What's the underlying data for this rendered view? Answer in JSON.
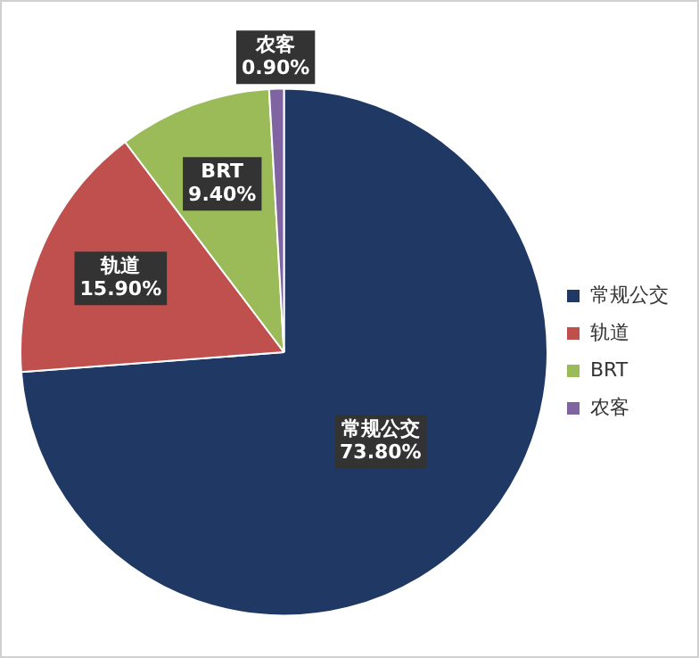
{
  "chart_data": {
    "type": "pie",
    "categories": [
      "常规公交",
      "轨道",
      "BRT",
      "农客"
    ],
    "values": [
      73.8,
      15.9,
      9.4,
      0.9
    ],
    "colors": [
      "#1f3864",
      "#c0504d",
      "#9bbb59",
      "#8064a2"
    ],
    "value_labels": [
      "73.80%",
      "15.90%",
      "9.40%",
      "0.90%"
    ],
    "legend": "right"
  }
}
